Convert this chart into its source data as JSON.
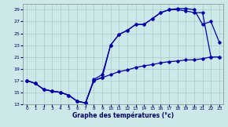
{
  "xlabel": "Graphe des températures (°c)",
  "background_color": "#cce8e8",
  "grid_color": "#aacccc",
  "line_color": "#0000aa",
  "ylim": [
    13,
    30
  ],
  "xlim": [
    -0.5,
    23.5
  ],
  "yticks": [
    13,
    15,
    17,
    19,
    21,
    23,
    25,
    27,
    29
  ],
  "xticks": [
    0,
    1,
    2,
    3,
    4,
    5,
    6,
    7,
    8,
    9,
    10,
    11,
    12,
    13,
    14,
    15,
    16,
    17,
    18,
    19,
    20,
    21,
    22,
    23
  ],
  "curve_bottom_x": [
    0,
    1,
    2,
    3,
    4,
    5,
    6,
    7,
    8,
    9,
    10,
    11,
    12,
    13,
    14,
    15,
    16,
    17,
    18,
    19,
    20,
    21,
    22,
    23
  ],
  "curve_bottom_y": [
    17,
    16.5,
    15.5,
    15.2,
    15.0,
    14.5,
    13.5,
    13.2,
    17.0,
    17.5,
    18.0,
    18.5,
    18.8,
    19.2,
    19.5,
    19.7,
    20.0,
    20.2,
    20.3,
    20.5,
    20.5,
    20.7,
    21.0,
    21.0
  ],
  "curve_top_x": [
    0,
    1,
    2,
    3,
    4,
    5,
    6,
    7,
    8,
    9,
    10,
    11,
    12,
    13,
    14,
    15,
    16,
    17,
    18,
    19,
    20,
    21,
    22,
    23
  ],
  "curve_top_y": [
    17,
    16.5,
    15.5,
    15.2,
    15.0,
    14.5,
    13.5,
    13.2,
    17.0,
    17.5,
    23.0,
    24.8,
    25.5,
    26.5,
    26.5,
    27.5,
    28.5,
    29.0,
    29.2,
    29.2,
    29.0,
    26.5,
    27.0,
    23.5
  ],
  "curve_mid_x": [
    0,
    1,
    2,
    3,
    4,
    5,
    6,
    7,
    8,
    9,
    10,
    11,
    12,
    13,
    14,
    15,
    16,
    17,
    18,
    19,
    20,
    21,
    22,
    23
  ],
  "curve_mid_y": [
    17,
    16.5,
    15.5,
    15.2,
    15.0,
    14.5,
    13.5,
    13.2,
    17.2,
    18.0,
    23.0,
    24.8,
    25.5,
    26.5,
    26.5,
    27.5,
    28.5,
    29.0,
    29.0,
    28.8,
    28.5,
    28.5,
    21.0,
    21.0
  ]
}
